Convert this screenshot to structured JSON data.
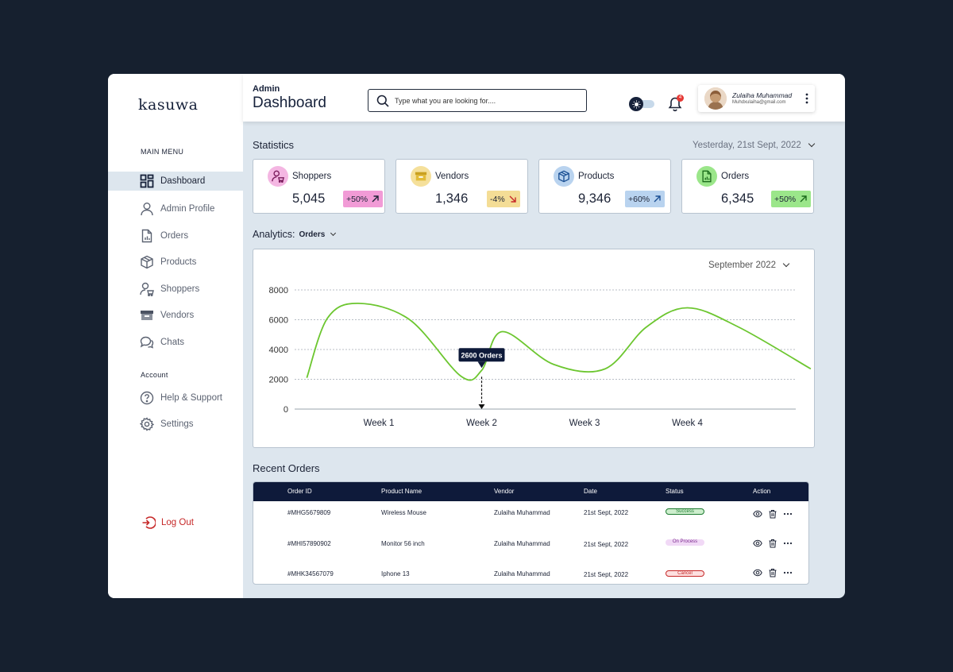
{
  "brand": {
    "logo_text": "kasuwa"
  },
  "sidebar": {
    "main_menu_label": "MAIN MENU",
    "items": [
      {
        "label": "Dashboard",
        "icon": "grid-icon"
      },
      {
        "label": "Admin Profile",
        "icon": "person-icon"
      },
      {
        "label": "Orders",
        "icon": "document-icon"
      },
      {
        "label": "Products",
        "icon": "box-icon"
      },
      {
        "label": "Shoppers",
        "icon": "shopper-icon"
      },
      {
        "label": "Vendors",
        "icon": "store-icon"
      },
      {
        "label": "Chats",
        "icon": "chat-icon"
      }
    ],
    "account_label": "Account",
    "account_items": [
      {
        "label": "Help & Support",
        "icon": "question-icon"
      },
      {
        "label": "Settings",
        "icon": "gear-icon"
      }
    ],
    "logout_label": "Log Out"
  },
  "header": {
    "subtitle": "Admin",
    "title": "Dashboard",
    "search_placeholder": "Type what you are looking for....",
    "notification_count": "4",
    "user": {
      "name": "Zulaiha Muhammad",
      "email": "Muhdxulaiha@gmail.com"
    }
  },
  "statistics": {
    "title": "Statistics",
    "date_label": "Yesterday, 21st Sept, 2022",
    "cards": [
      {
        "label": "Shoppers",
        "value": "5,045",
        "change": "+50%",
        "trend": "up",
        "icon": "shopper-icon",
        "accent": "#e879c4",
        "badge_bg": "#f19bd6"
      },
      {
        "label": "Vendors",
        "value": "1,346",
        "change": "-4%",
        "trend": "down",
        "icon": "store-icon",
        "accent": "#e8c95b",
        "badge_bg": "#f4dd96"
      },
      {
        "label": "Products",
        "value": "9,346",
        "change": "+60%",
        "trend": "up",
        "icon": "box-icon",
        "accent": "#8fb8e3",
        "badge_bg": "#b9d3ef"
      },
      {
        "label": "Orders",
        "value": "6,345",
        "change": "+50%",
        "trend": "up",
        "icon": "document-icon",
        "accent": "#7dd96a",
        "badge_bg": "#9be68a"
      }
    ]
  },
  "analytics": {
    "label": "Analytics:",
    "selected": "Orders",
    "month": "September 2022",
    "tooltip": "2600 Orders"
  },
  "chart_data": {
    "type": "line",
    "x_labels": [
      "Week 1",
      "Week 2",
      "Week 3",
      "Week 4"
    ],
    "ylim": [
      0,
      8000
    ],
    "y_ticks": [
      "8000",
      "6000",
      "4000",
      "2000",
      "0"
    ],
    "line_color": "#6cc62f",
    "x": [
      0.3,
      0.5,
      0.8,
      1.3,
      1.8,
      2.0,
      2.2,
      2.7,
      3.2,
      3.6,
      4.0,
      4.5,
      5.2
    ],
    "values": [
      2100,
      6100,
      7100,
      6000,
      2200,
      2600,
      5200,
      3000,
      2700,
      5500,
      6800,
      5500,
      2700
    ],
    "grid": true,
    "legend": false
  },
  "recent_orders": {
    "title": "Recent Orders",
    "columns": [
      "Order ID",
      "Product Name",
      "Vendor",
      "Date",
      "Status",
      "Action"
    ],
    "rows": [
      {
        "id": "#MHG5679809",
        "product": "Wireless Mouse",
        "vendor": "Zulaiha Muhammad",
        "date": "21st Sept, 2022",
        "status": "Success",
        "status_color": "#1b7a2e",
        "status_bg": "#cdeecd"
      },
      {
        "id": "#MHI57890902",
        "product": "Monitor 56 inch",
        "vendor": "Zulaiha Muhammad",
        "date": "21st Sept, 2022",
        "status": "On Process",
        "status_color": "#7b2a8e",
        "status_bg": "#f1d9f6"
      },
      {
        "id": "#MHK34567079",
        "product": "Iphone 13",
        "vendor": "Zulaiha Muhammad",
        "date": "21st Sept, 2022",
        "status": "Cancel",
        "status_color": "#c62828",
        "status_bg": "#fde0e0"
      }
    ]
  }
}
